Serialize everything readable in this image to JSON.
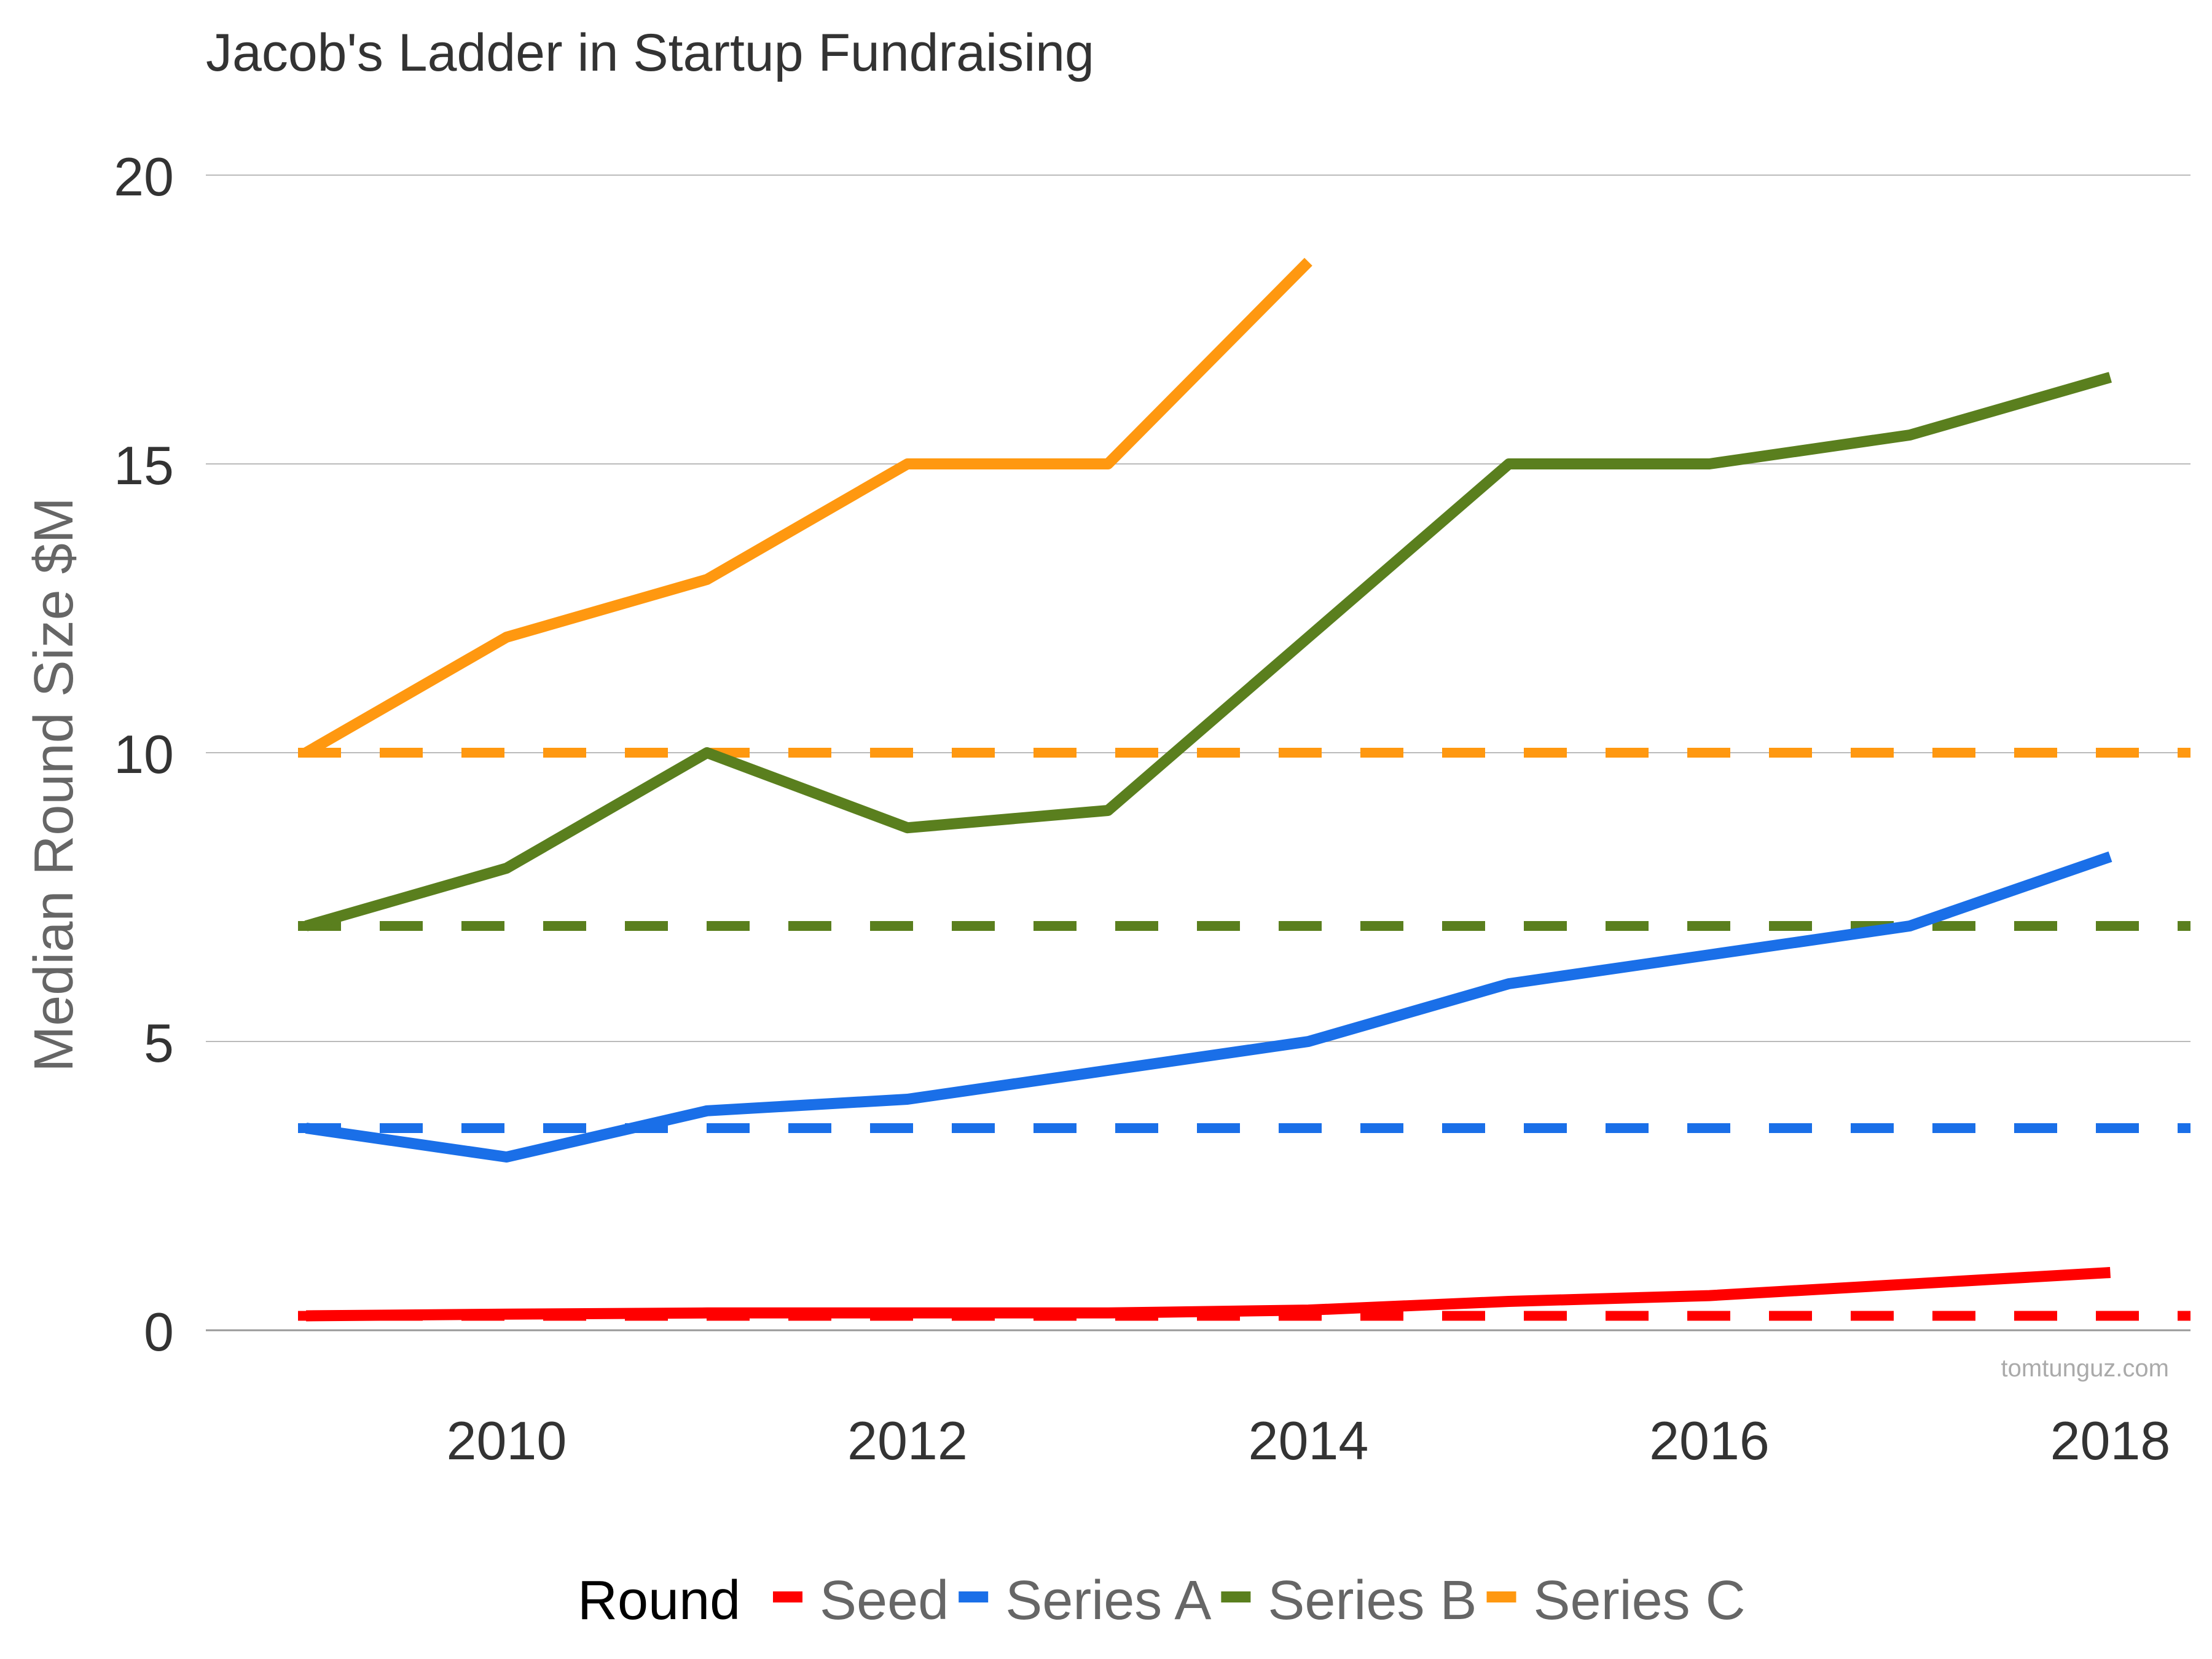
{
  "chart_data": {
    "type": "line",
    "title": "Jacob's Ladder in Startup Fundraising",
    "ylabel": "Median Round Size $M",
    "xlabel": "",
    "xlim": [
      2008.5,
      2018.4
    ],
    "ylim": [
      0,
      20
    ],
    "x_ticks": [
      "2010",
      "2012",
      "2014",
      "2016",
      "2018"
    ],
    "y_ticks": [
      "0",
      "5",
      "10",
      "15",
      "20"
    ],
    "grid": "horizontal",
    "legend": {
      "title": "Round",
      "position": "bottom"
    },
    "watermark": "tomtunguz.com",
    "x": [
      2009,
      2010,
      2011,
      2012,
      2013,
      2014,
      2015,
      2016,
      2017,
      2018
    ],
    "series": [
      {
        "name": "Seed",
        "color": "#ff0000",
        "values": [
          0.25,
          0.28,
          0.3,
          0.3,
          0.3,
          0.35,
          0.5,
          0.6,
          0.8,
          1.0
        ],
        "baseline": 0.25
      },
      {
        "name": "Series A",
        "color": "#1a6fe8",
        "values": [
          3.5,
          3.0,
          3.8,
          4.0,
          4.5,
          5.0,
          6.0,
          6.5,
          7.0,
          8.2
        ],
        "baseline": 3.5
      },
      {
        "name": "Series B",
        "color": "#5a7f1e",
        "values": [
          7.0,
          8.0,
          10.0,
          8.7,
          9.0,
          12.0,
          15.0,
          15.0,
          15.5,
          16.5
        ],
        "baseline": 7.0
      },
      {
        "name": "Series C",
        "color": "#ff9810",
        "values": [
          10.0,
          12.0,
          13.0,
          15.0,
          15.0,
          18.5,
          null,
          null,
          null,
          null
        ],
        "baseline": 10.0
      }
    ]
  }
}
